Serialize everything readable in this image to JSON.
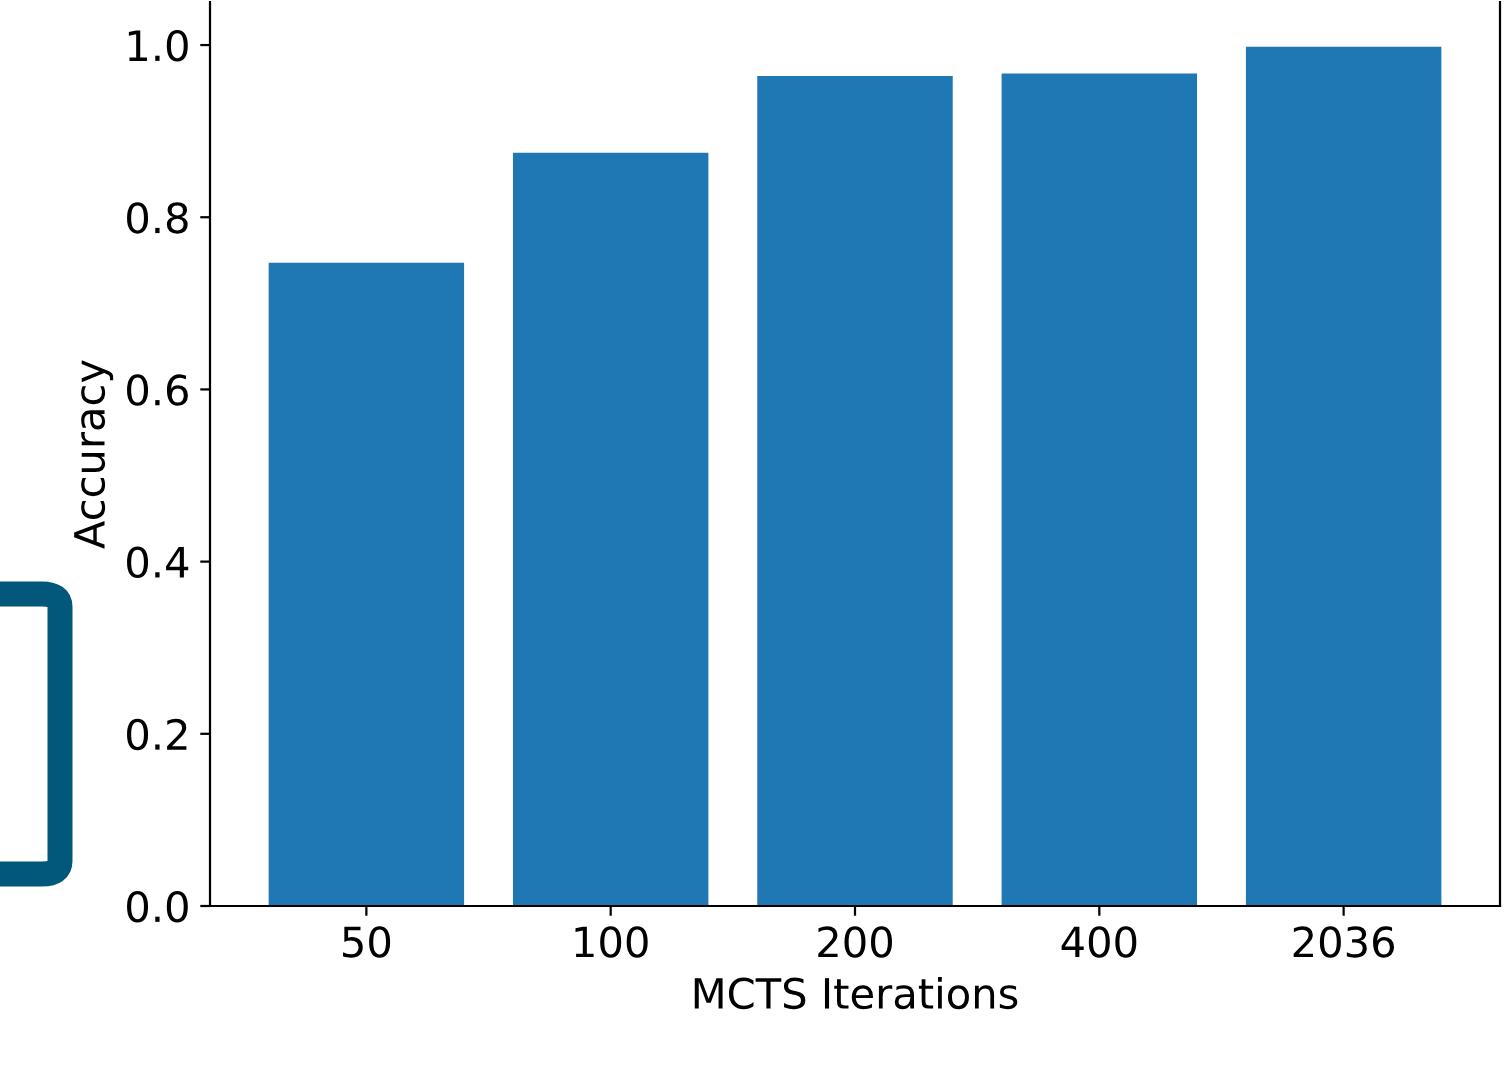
{
  "chart_data": {
    "type": "bar",
    "xlabel": "MCTS Iterations",
    "ylabel": "Accuracy",
    "categories": [
      "50",
      "100",
      "200",
      "400",
      "2036"
    ],
    "values": [
      0.747,
      0.875,
      0.964,
      0.967,
      0.998
    ],
    "color": "#1f77b4",
    "ylim": [
      0,
      1.05
    ],
    "yticks": [
      {
        "value": 0,
        "label": "0.0"
      },
      0.2,
      0.4,
      0.6,
      0.8,
      {
        "value": 1,
        "label": "1.0"
      }
    ],
    "grid": false
  }
}
